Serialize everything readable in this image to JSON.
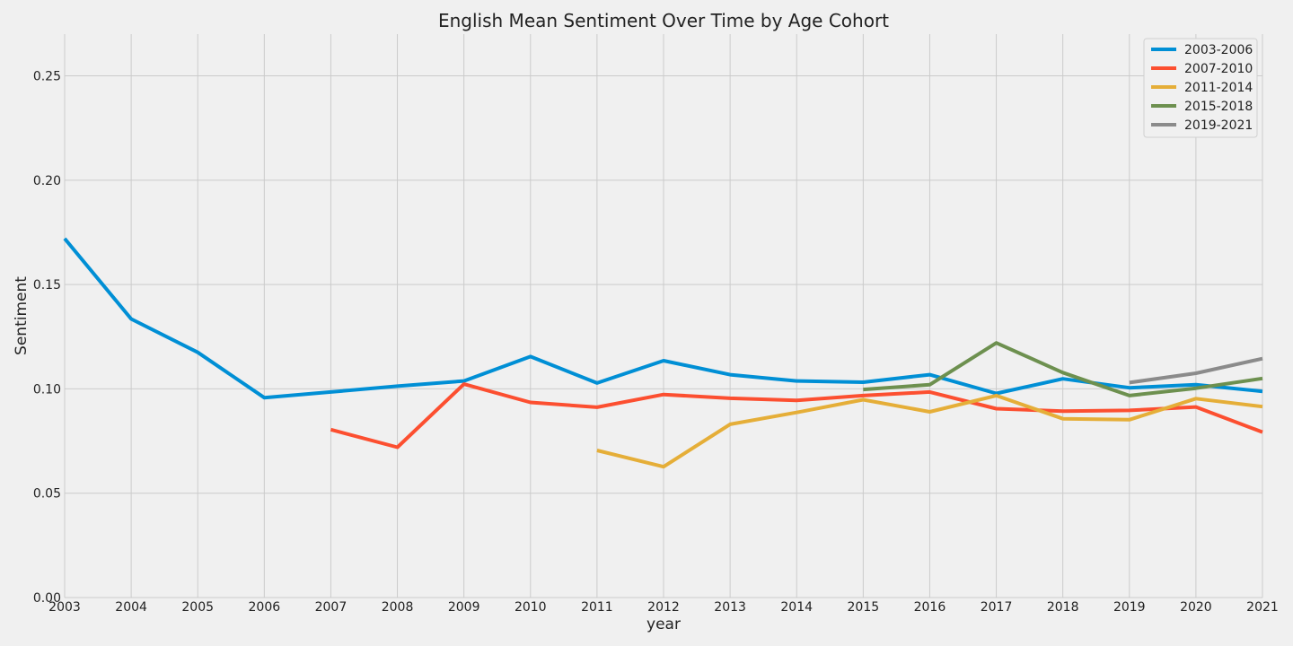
{
  "chart_data": {
    "type": "line",
    "title": "English Mean Sentiment Over Time by Age Cohort",
    "xlabel": "year",
    "ylabel": "Sentiment",
    "xlim": [
      2003,
      2021
    ],
    "ylim": [
      0.0,
      0.27
    ],
    "x_ticks": [
      "2003",
      "2004",
      "2005",
      "2006",
      "2007",
      "2008",
      "2009",
      "2010",
      "2011",
      "2012",
      "2013",
      "2014",
      "2015",
      "2016",
      "2017",
      "2018",
      "2019",
      "2020",
      "2021"
    ],
    "y_ticks": [
      "0.00",
      "0.05",
      "0.10",
      "0.15",
      "0.20",
      "0.25"
    ],
    "grid": true,
    "legend_position": "top-right",
    "series": [
      {
        "name": "2003-2006",
        "color": "#008fd5",
        "x": [
          2003,
          2004,
          2005,
          2006,
          2007,
          2008,
          2009,
          2010,
          2011,
          2012,
          2013,
          2014,
          2015,
          2016,
          2017,
          2018,
          2019,
          2020,
          2021
        ],
        "y": [
          0.172,
          0.1335,
          0.1175,
          0.0958,
          0.0985,
          0.1013,
          0.1038,
          0.1155,
          0.1028,
          0.1135,
          0.1068,
          0.1038,
          0.1032,
          0.1068,
          0.0978,
          0.1048,
          0.1005,
          0.102,
          0.0988
        ]
      },
      {
        "name": "2007-2010",
        "color": "#fc4f30",
        "x": [
          2007,
          2008,
          2009,
          2010,
          2011,
          2012,
          2013,
          2014,
          2015,
          2016,
          2017,
          2018,
          2019,
          2020,
          2021
        ],
        "y": [
          0.0805,
          0.072,
          0.1023,
          0.0935,
          0.0912,
          0.0973,
          0.0955,
          0.0945,
          0.0968,
          0.0985,
          0.0905,
          0.0893,
          0.0897,
          0.0913,
          0.0793
        ]
      },
      {
        "name": "2011-2014",
        "color": "#e5ae38",
        "x": [
          2011,
          2012,
          2013,
          2014,
          2015,
          2016,
          2017,
          2018,
          2019,
          2020,
          2021
        ],
        "y": [
          0.0705,
          0.0627,
          0.083,
          0.0887,
          0.0948,
          0.089,
          0.0968,
          0.0857,
          0.0852,
          0.0953,
          0.0915
        ]
      },
      {
        "name": "2015-2018",
        "color": "#6d904f",
        "x": [
          2015,
          2016,
          2017,
          2018,
          2019,
          2020,
          2021
        ],
        "y": [
          0.0997,
          0.102,
          0.122,
          0.1078,
          0.0968,
          0.1003,
          0.105
        ]
      },
      {
        "name": "2019-2021",
        "color": "#8b8b8b",
        "x": [
          2019,
          2020,
          2021
        ],
        "y": [
          0.103,
          0.1075,
          0.1145
        ]
      }
    ]
  }
}
